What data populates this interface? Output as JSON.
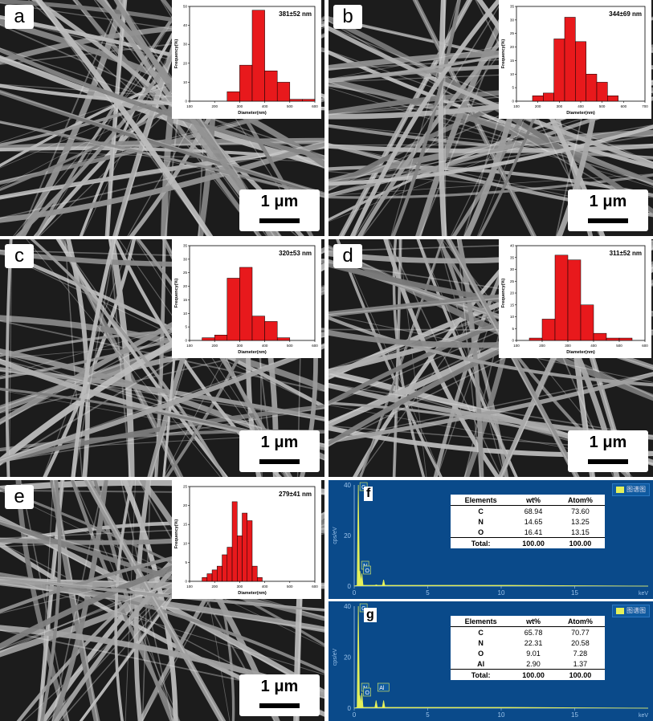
{
  "panels": [
    {
      "label": "a",
      "scale_bar": "1 μm",
      "inset": {
        "stat": "381±52 nm",
        "xlabel": "Diameter(nm)",
        "ylabel": "Frequency(%)"
      }
    },
    {
      "label": "b",
      "scale_bar": "1 μm",
      "inset": {
        "stat": "344±69 nm",
        "xlabel": "Diameter(nm)",
        "ylabel": "Frequency(%)"
      }
    },
    {
      "label": "c",
      "scale_bar": "1 μm",
      "inset": {
        "stat": "320±53 nm",
        "xlabel": "Diameter(nm)",
        "ylabel": "Frequency(%)"
      }
    },
    {
      "label": "d",
      "scale_bar": "1 μm",
      "inset": {
        "stat": "311±52 nm",
        "xlabel": "Diameter(nm)",
        "ylabel": "Frequency(%)"
      }
    },
    {
      "label": "e",
      "scale_bar": "1 μm",
      "inset": {
        "stat": "279±41 nm",
        "xlabel": "Diameter(nm)",
        "ylabel": "Frequency(%)"
      }
    }
  ],
  "eds": [
    {
      "label": "f",
      "legend": "图谱图",
      "ylabel": "cps/eV",
      "xunit": "keV",
      "peaks": [
        "C",
        "N",
        "O"
      ],
      "table": {
        "headers": [
          "Elements",
          "wt%",
          "Atom%"
        ],
        "rows": [
          [
            "C",
            "68.94",
            "73.60"
          ],
          [
            "N",
            "14.65",
            "13.25"
          ],
          [
            "O",
            "16.41",
            "13.15"
          ]
        ],
        "total": [
          "Total:",
          "100.00",
          "100.00"
        ]
      }
    },
    {
      "label": "g",
      "legend": "图谱图",
      "ylabel": "cps/eV",
      "xunit": "keV",
      "peaks": [
        "C",
        "N",
        "O",
        "Al"
      ],
      "table": {
        "headers": [
          "Elements",
          "wt%",
          "Atom%"
        ],
        "rows": [
          [
            "C",
            "65.78",
            "70.77"
          ],
          [
            "N",
            "22.31",
            "20.58"
          ],
          [
            "O",
            "9.01",
            "7.28"
          ],
          [
            "Al",
            "2.90",
            "1.37"
          ]
        ],
        "total": [
          "Total:",
          "100.00",
          "100.00"
        ]
      }
    }
  ],
  "chart_data": [
    {
      "type": "bar",
      "panel": "a",
      "xlabel": "Diameter(nm)",
      "ylabel": "Frequency(%)",
      "xlim": [
        100,
        600
      ],
      "ylim": [
        0,
        50
      ],
      "xticks": [
        100,
        200,
        300,
        400,
        500,
        600
      ],
      "yticks": [
        0,
        10,
        20,
        30,
        40,
        50
      ],
      "x": [
        275,
        325,
        375,
        425,
        475,
        525,
        575
      ],
      "values": [
        5,
        19,
        48,
        16,
        10,
        1,
        1
      ]
    },
    {
      "type": "bar",
      "panel": "b",
      "xlabel": "Diameter(nm)",
      "ylabel": "Frequency(%)",
      "xlim": [
        100,
        700
      ],
      "ylim": [
        0,
        35
      ],
      "xticks": [
        100,
        200,
        300,
        400,
        500,
        600,
        700
      ],
      "yticks": [
        0,
        5,
        10,
        15,
        20,
        25,
        30,
        35
      ],
      "x": [
        150,
        200,
        250,
        300,
        350,
        400,
        450,
        500,
        550,
        600
      ],
      "values": [
        0,
        2,
        3,
        23,
        31,
        22,
        10,
        7,
        2,
        0
      ]
    },
    {
      "type": "bar",
      "panel": "c",
      "xlabel": "Diameter(nm)",
      "ylabel": "Frequency(%)",
      "xlim": [
        100,
        600
      ],
      "ylim": [
        0,
        35
      ],
      "xticks": [
        100,
        200,
        300,
        400,
        500,
        600
      ],
      "yticks": [
        0,
        5,
        10,
        15,
        20,
        25,
        30,
        35
      ],
      "x": [
        175,
        225,
        275,
        325,
        375,
        425,
        475
      ],
      "values": [
        1,
        2,
        23,
        27,
        9,
        7,
        1
      ]
    },
    {
      "type": "bar",
      "panel": "d",
      "xlabel": "Diameter(nm)",
      "ylabel": "Frequency(%)",
      "xlim": [
        100,
        600
      ],
      "ylim": [
        0,
        40
      ],
      "xticks": [
        100,
        200,
        300,
        400,
        500,
        600
      ],
      "yticks": [
        0,
        5,
        10,
        15,
        20,
        25,
        30,
        35,
        40
      ],
      "x": [
        175,
        225,
        275,
        325,
        375,
        425,
        475,
        525
      ],
      "values": [
        1,
        9,
        36,
        34,
        15,
        3,
        1,
        1
      ]
    },
    {
      "type": "bar",
      "panel": "e",
      "xlabel": "Diameter(nm)",
      "ylabel": "Frequency(%)",
      "xlim": [
        100,
        600
      ],
      "ylim": [
        0,
        25
      ],
      "xticks": [
        100,
        200,
        300,
        400,
        500,
        600
      ],
      "yticks": [
        0,
        5,
        10,
        15,
        20,
        25
      ],
      "x": [
        160,
        180,
        200,
        220,
        240,
        260,
        280,
        300,
        320,
        340,
        360,
        380
      ],
      "values": [
        1,
        2,
        3,
        4,
        7,
        9,
        21,
        12,
        18,
        16,
        4,
        1
      ]
    },
    {
      "type": "line",
      "panel": "f",
      "xlabel": "keV",
      "ylabel": "cps/eV",
      "xlim": [
        0,
        20
      ],
      "ylim": [
        0,
        40
      ],
      "xticks": [
        0,
        5,
        10,
        15
      ],
      "yticks": [
        0,
        20,
        40
      ],
      "x": [
        0.28,
        0.39,
        0.52,
        1.5,
        2.0,
        9.8
      ],
      "values": [
        42,
        6,
        5,
        0.5,
        2.5,
        0.3
      ]
    },
    {
      "type": "line",
      "panel": "g",
      "xlabel": "keV",
      "ylabel": "cps/eV",
      "xlim": [
        0,
        20
      ],
      "ylim": [
        0,
        40
      ],
      "xticks": [
        0,
        5,
        10,
        15
      ],
      "yticks": [
        0,
        20,
        40
      ],
      "x": [
        0.28,
        0.39,
        0.52,
        1.49,
        2.0,
        9.8
      ],
      "values": [
        42,
        5,
        6,
        3,
        3,
        0.3
      ]
    }
  ]
}
